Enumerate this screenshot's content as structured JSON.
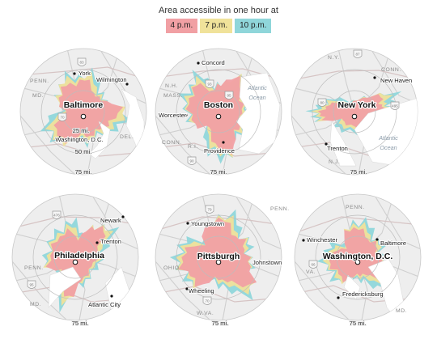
{
  "legend": {
    "title": "Area accessible in one hour at",
    "items": [
      {
        "label": "4 p.m.",
        "color": "#f1a0a4"
      },
      {
        "label": "7 p.m.",
        "color": "#f0e29a"
      },
      {
        "label": "10 p.m.",
        "color": "#8fd6da"
      }
    ]
  },
  "colors": {
    "map_bg": "#eeeeee",
    "map_border": "#c8c8c8",
    "water": "#ffffff",
    "roads": "#cfcfcf",
    "state_borders": "#d6c4c4",
    "ring_lines": "#bdbdbd",
    "center_marker": "#ffffff"
  },
  "maps": [
    {
      "city": "Baltimore",
      "rings": {
        "inner": "25 mi.",
        "middle": "50 mi.",
        "outer": "75 mi."
      },
      "places": [
        "York",
        "Wilmington",
        "Washington, D.C."
      ],
      "regions": [
        "PENN.",
        "MD.",
        "DEL."
      ],
      "oceans": [],
      "shields": [
        "83",
        "70"
      ]
    },
    {
      "city": "Boston",
      "rings": {
        "outer": "75 mi."
      },
      "places": [
        "Concord",
        "Worcester",
        "Providence"
      ],
      "regions": [
        "N.H.",
        "MASS.",
        "CONN.",
        "R.I."
      ],
      "oceans": [
        "Atlantic",
        "Ocean"
      ],
      "shields": [
        "93",
        "95",
        "90"
      ]
    },
    {
      "city": "New York",
      "rings": {
        "outer": "75 mi."
      },
      "places": [
        "New Haven",
        "Trenton"
      ],
      "regions": [
        "N.Y.",
        "CONN.",
        "N.J."
      ],
      "oceans": [
        "Atlantic",
        "Ocean"
      ],
      "shields": [
        "87",
        "80",
        "495"
      ]
    },
    {
      "city": "Philadelphia",
      "rings": {
        "outer": "75 mi."
      },
      "places": [
        "Newark",
        "Trenton",
        "Atlantic City"
      ],
      "regions": [
        "PENN.",
        "MD."
      ],
      "oceans": [],
      "shields": [
        "476",
        "95"
      ]
    },
    {
      "city": "Pittsburgh",
      "rings": {
        "outer": "75 mi."
      },
      "places": [
        "Youngstown",
        "Johnstown",
        "Wheeling"
      ],
      "regions": [
        "PENN.",
        "OHIO",
        "W.VA."
      ],
      "oceans": [],
      "shields": [
        "79",
        "70"
      ]
    },
    {
      "city": "Washington, D.C.",
      "rings": {
        "outer": "75 mi."
      },
      "places": [
        "Winchester",
        "Baltimore",
        "Fredericksburg"
      ],
      "regions": [
        "PENN.",
        "VA.",
        "MD."
      ],
      "oceans": [],
      "shields": [
        "66"
      ]
    }
  ]
}
